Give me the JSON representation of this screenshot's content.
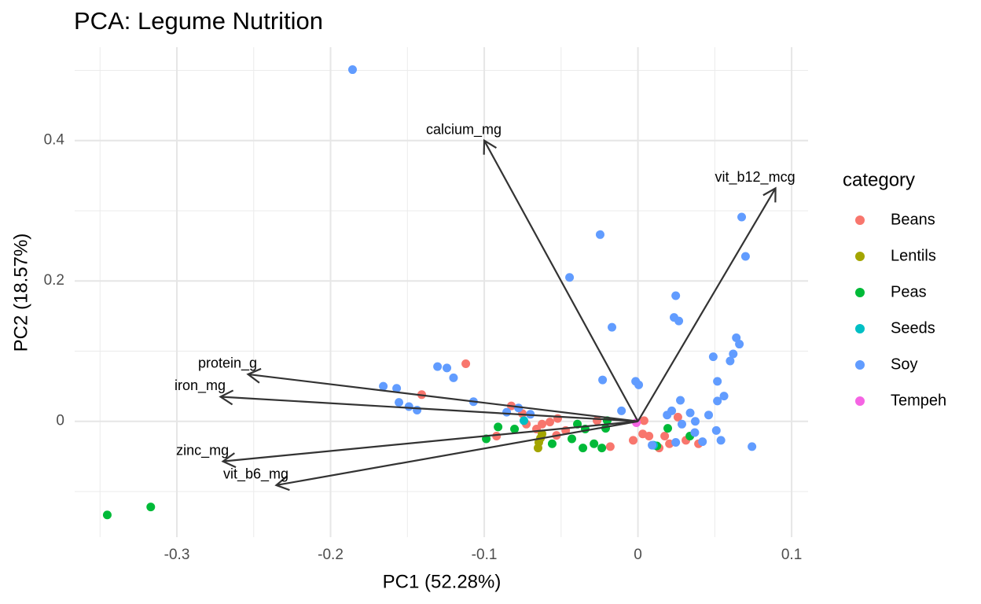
{
  "chart_data": {
    "type": "scatter",
    "title": "PCA: Legume Nutrition",
    "x_label": "PC1 (52.28%)",
    "y_label": "PC2 (18.57%)",
    "xlim": [
      -0.3665,
      0.1107
    ],
    "ylim": [
      -0.165,
      0.533
    ],
    "xticks": [
      -0.3,
      -0.2,
      -0.1,
      0.0,
      0.1
    ],
    "yticks": [
      0.0,
      0.2,
      0.4
    ],
    "x_minor_ticks": [
      -0.35,
      -0.25,
      -0.15,
      -0.05,
      0.05
    ],
    "y_minor_ticks": [
      -0.1,
      0.1,
      0.3,
      0.5
    ],
    "grid": true,
    "legend_title": "category",
    "legend_position": "right",
    "series": [
      {
        "name": "Beans",
        "color": "#F8766D",
        "x": [
          -0.112,
          -0.1407,
          -0.0824,
          -0.0752,
          -0.0624,
          -0.0573,
          -0.0522,
          -0.047,
          -0.092,
          -0.018,
          -0.0031,
          0.004,
          0.0072,
          0.0138,
          0.0205,
          0.026,
          0.0312,
          0.0394,
          0.0174,
          0.0031,
          -0.0266,
          -0.066,
          -0.0726,
          -0.053
        ],
        "values": [
          0.082,
          0.038,
          0.022,
          0.011,
          -0.004,
          -0.001,
          0.004,
          -0.013,
          -0.021,
          -0.036,
          -0.027,
          0.001,
          -0.021,
          -0.038,
          -0.032,
          0.006,
          -0.027,
          -0.032,
          -0.021,
          -0.018,
          0.001,
          -0.011,
          -0.004,
          -0.02
        ]
      },
      {
        "name": "Lentils",
        "color": "#A3A500",
        "x": [
          -0.0645,
          -0.065,
          -0.0634,
          -0.0624
        ],
        "values": [
          -0.03,
          -0.038,
          -0.024,
          -0.018
        ]
      },
      {
        "name": "Peas",
        "color": "#00BA38",
        "x": [
          -0.3453,
          -0.317,
          -0.0987,
          -0.091,
          -0.0803,
          -0.0558,
          -0.0394,
          -0.0343,
          -0.0358,
          -0.0286,
          -0.021,
          -0.0235,
          0.0194,
          0.0338,
          0.0123,
          -0.043,
          -0.02
        ],
        "values": [
          -0.1333,
          -0.122,
          -0.025,
          -0.008,
          -0.011,
          -0.032,
          -0.004,
          -0.011,
          -0.038,
          -0.032,
          -0.01,
          -0.038,
          -0.01,
          -0.021,
          -0.035,
          -0.025,
          0.001
        ]
      },
      {
        "name": "Seeds",
        "color": "#00BFC4",
        "x": [
          -0.0742,
          0.0102
        ],
        "values": [
          0.001,
          -0.034
        ]
      },
      {
        "name": "Soy",
        "color": "#619CFF",
        "x": [
          -0.1857,
          0.0675,
          0.07,
          -0.0246,
          -0.0445,
          0.0246,
          -0.0169,
          0.0235,
          0.0266,
          0.064,
          0.066,
          0.062,
          0.06,
          0.049,
          -0.023,
          -0.1304,
          -0.1243,
          -0.12,
          -0.1657,
          -0.157,
          -0.1555,
          -0.149,
          -0.1437,
          -0.107,
          -0.0015,
          0.0005,
          0.0517,
          0.056,
          0.0517,
          0.0276,
          -0.0107,
          0.034,
          0.046,
          0.019,
          0.022,
          0.051,
          0.0742,
          0.037,
          0.042,
          0.0092,
          0.0246,
          -0.0854,
          -0.0777,
          -0.07,
          0.054,
          0.0373,
          0.0286
        ],
        "values": [
          0.501,
          0.291,
          0.235,
          0.266,
          0.205,
          0.179,
          0.134,
          0.148,
          0.143,
          0.119,
          0.11,
          0.096,
          0.086,
          0.092,
          0.059,
          0.078,
          0.076,
          0.062,
          0.05,
          0.047,
          0.027,
          0.021,
          0.016,
          0.028,
          0.057,
          0.052,
          0.057,
          0.036,
          0.029,
          0.03,
          0.015,
          0.012,
          0.009,
          0.009,
          0.015,
          -0.013,
          -0.036,
          -0.016,
          -0.029,
          -0.034,
          -0.03,
          0.013,
          0.019,
          0.01,
          -0.027,
          0.0,
          -0.004
        ]
      },
      {
        "name": "Tempeh",
        "color": "#F564E3",
        "x": [
          -0.001
        ],
        "values": [
          -0.002
        ]
      }
    ],
    "loadings": [
      {
        "name": "calcium_mg",
        "x": -0.1,
        "y": 0.4
      },
      {
        "name": "vit_b12_mcg",
        "x": 0.0895,
        "y": 0.332
      },
      {
        "name": "protein_g",
        "x": -0.2537,
        "y": 0.067
      },
      {
        "name": "iron_mg",
        "x": -0.2716,
        "y": 0.035
      },
      {
        "name": "zinc_mg",
        "x": -0.27,
        "y": -0.057
      },
      {
        "name": "vit_b6_mg",
        "x": -0.2353,
        "y": -0.091
      }
    ],
    "loading_color": "#333333"
  }
}
